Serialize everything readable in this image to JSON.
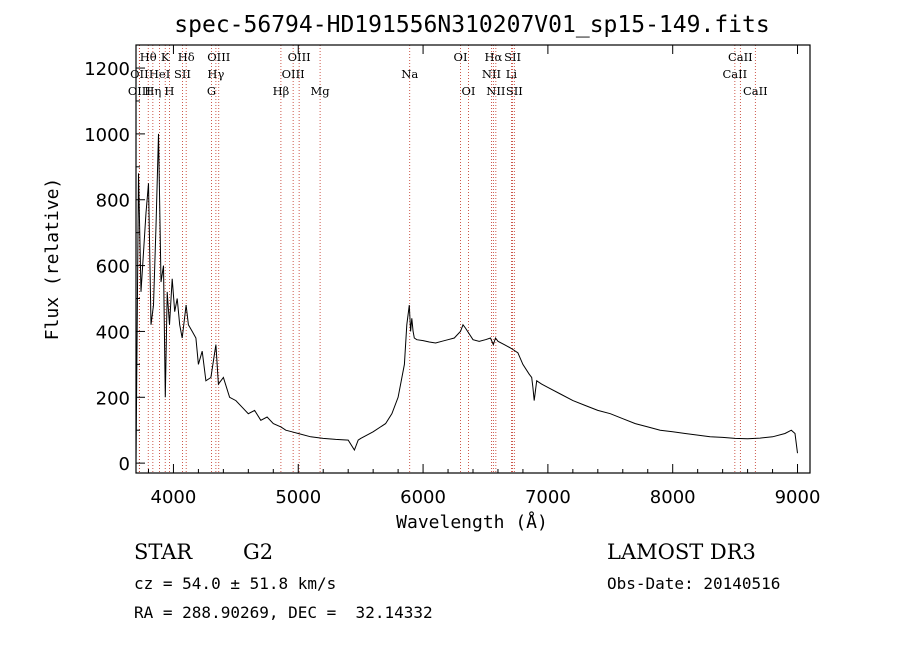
{
  "chart_data": {
    "type": "line",
    "title": "spec-56794-HD191556N310207V01_sp15-149.fits",
    "xlabel": "Wavelength (Å)",
    "ylabel": "Flux (relative)",
    "xlim": [
      3700,
      9100
    ],
    "ylim": [
      -30,
      1270
    ],
    "xticks": [
      4000,
      5000,
      6000,
      7000,
      8000,
      9000
    ],
    "yticks": [
      0,
      200,
      400,
      600,
      800,
      1000,
      1200
    ],
    "grid": false,
    "series": [
      {
        "name": "spectrum",
        "x": [
          3700,
          3720,
          3740,
          3760,
          3780,
          3800,
          3820,
          3840,
          3860,
          3880,
          3900,
          3920,
          3935,
          3950,
          3968,
          3990,
          4010,
          4030,
          4050,
          4070,
          4101,
          4120,
          4150,
          4180,
          4200,
          4230,
          4260,
          4300,
          4340,
          4360,
          4400,
          4450,
          4500,
          4550,
          4600,
          4650,
          4700,
          4750,
          4800,
          4861,
          4900,
          4950,
          5000,
          5100,
          5200,
          5300,
          5400,
          5450,
          5480,
          5500,
          5600,
          5700,
          5750,
          5800,
          5850,
          5870,
          5890,
          5900,
          5910,
          5920,
          5930,
          5950,
          6000,
          6050,
          6100,
          6150,
          6200,
          6250,
          6300,
          6320,
          6340,
          6400,
          6450,
          6500,
          6540,
          6563,
          6580,
          6600,
          6650,
          6700,
          6720,
          6760,
          6800,
          6850,
          6870,
          6880,
          6890,
          6910,
          6950,
          7000,
          7100,
          7200,
          7300,
          7400,
          7500,
          7600,
          7700,
          7800,
          7900,
          8000,
          8100,
          8200,
          8300,
          8400,
          8500,
          8600,
          8700,
          8800,
          8900,
          8950,
          8980,
          9000
        ],
        "y": [
          0,
          880,
          520,
          640,
          760,
          850,
          420,
          480,
          720,
          1000,
          550,
          600,
          200,
          520,
          420,
          560,
          460,
          500,
          420,
          380,
          480,
          420,
          400,
          380,
          300,
          340,
          250,
          260,
          360,
          240,
          260,
          200,
          190,
          170,
          150,
          160,
          130,
          140,
          120,
          110,
          100,
          95,
          90,
          80,
          75,
          72,
          70,
          40,
          70,
          75,
          95,
          120,
          150,
          200,
          300,
          420,
          480,
          400,
          440,
          400,
          380,
          375,
          372,
          368,
          365,
          370,
          375,
          380,
          400,
          420,
          410,
          375,
          370,
          375,
          380,
          360,
          380,
          370,
          360,
          350,
          345,
          335,
          300,
          270,
          260,
          230,
          190,
          250,
          240,
          230,
          210,
          190,
          175,
          160,
          150,
          135,
          120,
          110,
          100,
          95,
          90,
          85,
          80,
          78,
          75,
          74,
          76,
          80,
          90,
          100,
          90,
          30
        ]
      }
    ],
    "spectral_lines": [
      {
        "label": "Hθ",
        "wavelength": 3798,
        "row": 1
      },
      {
        "label": "OII",
        "wavelength": 3727,
        "row": 2
      },
      {
        "label": "OIII",
        "wavelength": 3727,
        "row": 3
      },
      {
        "label": "Hη",
        "wavelength": 3835,
        "row": 3
      },
      {
        "label": "K",
        "wavelength": 3934,
        "row": 1
      },
      {
        "label": "HeI",
        "wavelength": 3889,
        "row": 2
      },
      {
        "label": "H",
        "wavelength": 3968,
        "row": 3
      },
      {
        "label": "SII",
        "wavelength": 4072,
        "row": 2
      },
      {
        "label": "Hδ",
        "wavelength": 4102,
        "row": 1
      },
      {
        "label": "OIII",
        "wavelength": 4363,
        "row": 1
      },
      {
        "label": "Hγ",
        "wavelength": 4340,
        "row": 2
      },
      {
        "label": "G",
        "wavelength": 4305,
        "row": 3
      },
      {
        "label": "Hβ",
        "wavelength": 4861,
        "row": 3
      },
      {
        "label": "OIII",
        "wavelength": 5007,
        "row": 1
      },
      {
        "label": "OIII",
        "wavelength": 4959,
        "row": 2
      },
      {
        "label": "Mg",
        "wavelength": 5175,
        "row": 3
      },
      {
        "label": "Na",
        "wavelength": 5893,
        "row": 2
      },
      {
        "label": "OI",
        "wavelength": 6300,
        "row": 1
      },
      {
        "label": "OI",
        "wavelength": 6364,
        "row": 3
      },
      {
        "label": "Hα",
        "wavelength": 6563,
        "row": 1
      },
      {
        "label": "NII",
        "wavelength": 6548,
        "row": 2
      },
      {
        "label": "NII",
        "wavelength": 6583,
        "row": 3
      },
      {
        "label": "SII",
        "wavelength": 6717,
        "row": 1
      },
      {
        "label": "Li",
        "wavelength": 6708,
        "row": 2
      },
      {
        "label": "SII",
        "wavelength": 6731,
        "row": 3
      },
      {
        "label": "CaII",
        "wavelength": 8542,
        "row": 1
      },
      {
        "label": "CaII",
        "wavelength": 8498,
        "row": 2
      },
      {
        "label": "CaII",
        "wavelength": 8662,
        "row": 3
      }
    ],
    "line_colors": {
      "spectrum": "#000000",
      "markers": "#c03020"
    }
  },
  "info": {
    "class": "STAR",
    "subclass": "G2",
    "survey": "LAMOST DR3",
    "redshift": "cz = 54.0 ± 51.8 km/s",
    "obs_date": "Obs-Date: 20140516",
    "coords": "RA = 288.90269, DEC =  32.14332"
  }
}
